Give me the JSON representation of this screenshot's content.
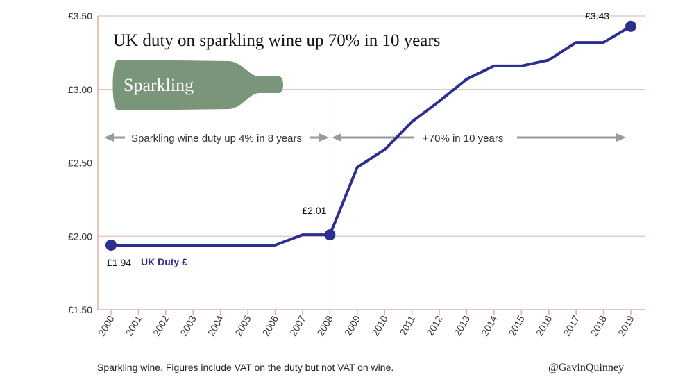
{
  "chart_data": {
    "type": "line",
    "title": "UK duty on sparkling wine up 70% in 10 years",
    "x": [
      "2000",
      "2001",
      "2002",
      "2003",
      "2004",
      "2005",
      "2006",
      "2007",
      "2008",
      "2009",
      "2010",
      "2011",
      "2012",
      "2013",
      "2014",
      "2015",
      "2016",
      "2017",
      "2018",
      "2019"
    ],
    "series": [
      {
        "name": "UK Duty £",
        "values": [
          1.94,
          1.94,
          1.94,
          1.94,
          1.94,
          1.94,
          1.94,
          2.01,
          2.01,
          2.47,
          2.59,
          2.78,
          2.92,
          3.07,
          3.16,
          3.16,
          3.2,
          3.32,
          3.32,
          3.43
        ]
      }
    ],
    "ylim": [
      1.5,
      3.5
    ],
    "yticks": [
      1.5,
      2.0,
      2.5,
      3.0,
      3.5
    ],
    "ytick_labels": [
      "£1.50",
      "£2.00",
      "£2.50",
      "£3.00",
      "£3.50"
    ],
    "grid": true,
    "color": "#2d2f8f",
    "marked_points": [
      {
        "year": "2000",
        "label": "£1.94"
      },
      {
        "year": "2008",
        "label": "£2.01"
      },
      {
        "year": "2019",
        "label": "£3.43"
      }
    ],
    "legend_label": "UK Duty £",
    "annotations": {
      "period1": "Sparkling wine duty up 4% in 8 years",
      "period2": "+70% in 10 years"
    },
    "bottle_label": "Sparkling"
  },
  "footer": {
    "note": "Sparkling wine. Figures include VAT on the duty but not VAT on wine.",
    "credit": "@GavinQuinney"
  },
  "colors": {
    "line": "#2d2f8f",
    "grid": "#d7b3ad",
    "bottle": "#7a957a",
    "arrow": "#9a9a9a"
  }
}
